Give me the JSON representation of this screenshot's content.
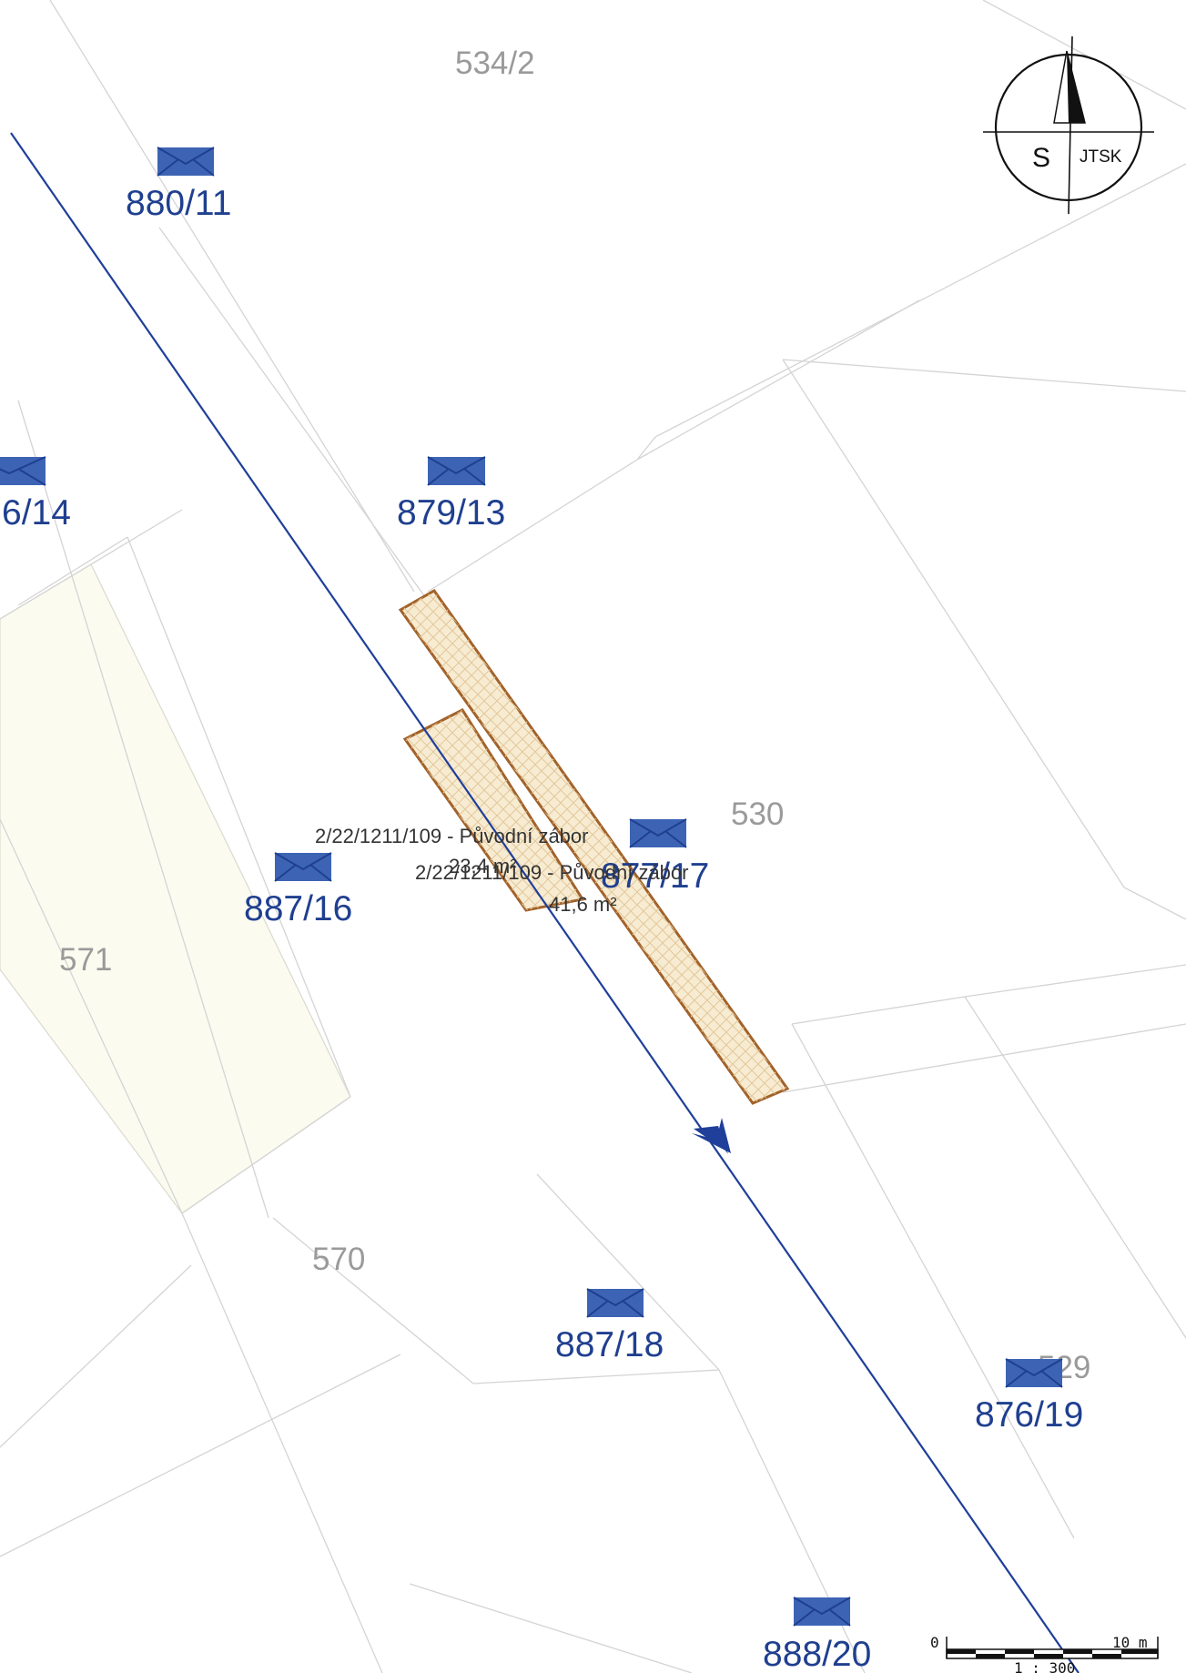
{
  "parcels": {
    "p534_2": "534/2",
    "p530": "530",
    "p571": "571",
    "p570": "570",
    "p529": "529"
  },
  "markers": {
    "m880_11": "880/11",
    "m886_14": "6/14",
    "m879_13": "879/13",
    "m887_16": "887/16",
    "m877_17": "877/17",
    "m887_18": "887/18",
    "m876_19": "876/19",
    "m888_20": "888/20"
  },
  "zabory": {
    "a_title": "2/22/1211/109 - Původní zábor",
    "a_area": "23,4 m²",
    "b_title": "2/22/1211/109 - Původní zábor",
    "b_area": "41,6 m²"
  },
  "compass": {
    "north_letter": "S",
    "crs": "JTSK"
  },
  "scale_bar": {
    "start": "0",
    "end": "10 m",
    "ratio": "1 : 300"
  },
  "colors": {
    "line": "#1f3f9a",
    "marker": "#3d64b4",
    "marker_text": "#1f3f8f",
    "zabor_outline": "#a2622a",
    "zabor_fill": "#f7ecd2",
    "parcel_border": "#d4d4d4",
    "parcel_571_fill": "#fbfbf0"
  }
}
